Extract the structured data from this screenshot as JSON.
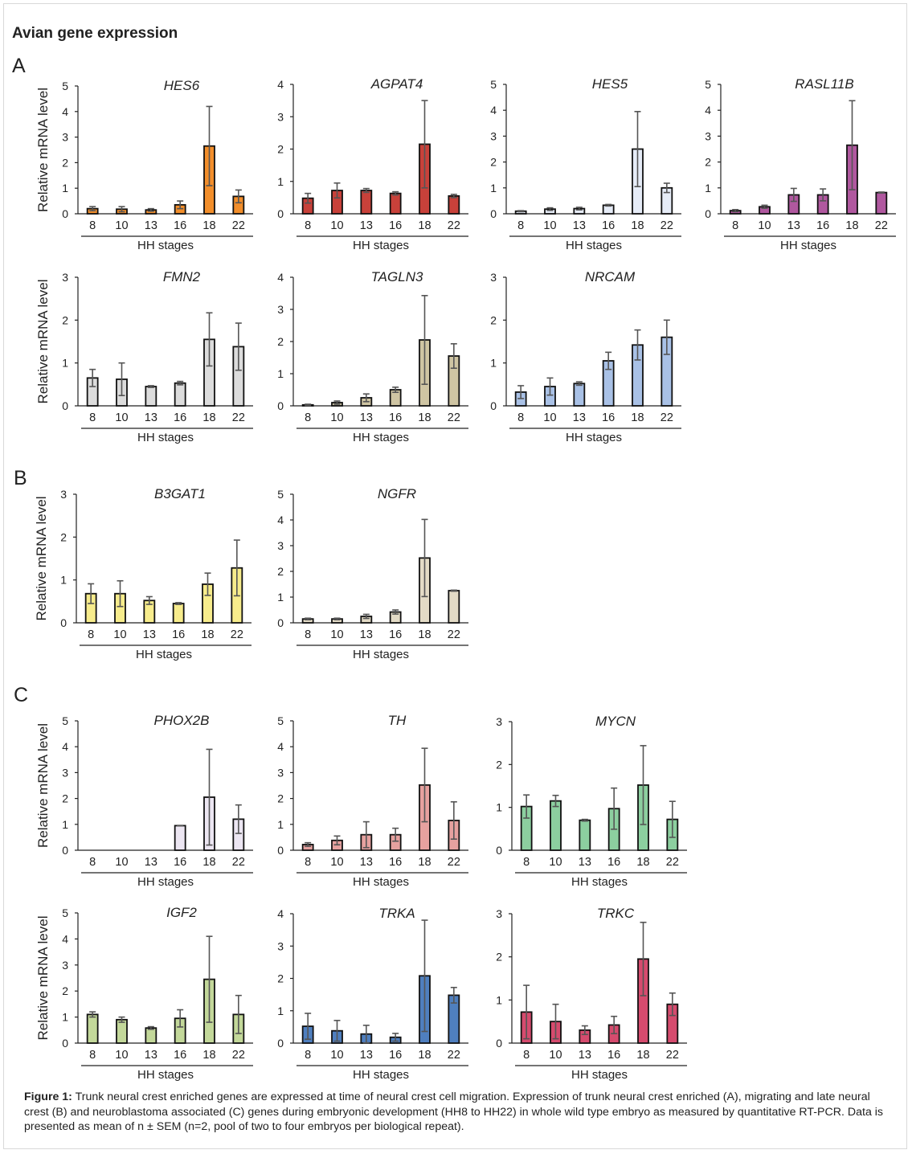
{
  "figure": {
    "title": "Avian gene expression",
    "panels": [
      "A",
      "B",
      "C"
    ],
    "caption_label": "Figure 1:",
    "caption_text": "Trunk neural crest enriched genes are expressed at time of neural crest cell migration. Expression of trunk neural crest enriched (A), migrating and late neural crest (B) and neuroblastoma associated (C) genes during embryonic development (HH8 to HH22) in whole wild type embryo as measured by quantitative RT-PCR. Data is presented as mean of n ± SEM (n=2, pool of two to four embryos per biological repeat)."
  },
  "chart_data": [
    {
      "type": "bar",
      "panel": "A",
      "title": "HES6",
      "categories": [
        "8",
        "10",
        "13",
        "16",
        "18",
        "22"
      ],
      "values": [
        0.2,
        0.18,
        0.15,
        0.35,
        2.65,
        0.68
      ],
      "error": [
        0.08,
        0.1,
        0.05,
        0.15,
        1.55,
        0.25
      ],
      "ylim": [
        0,
        5
      ],
      "yticks": [
        0,
        1,
        2,
        3,
        4,
        5
      ],
      "xlabel": "HH stages",
      "ylabel": "Relative mRNA level",
      "color": "#f28e2b"
    },
    {
      "type": "bar",
      "panel": "A",
      "title": "AGPAT4",
      "categories": [
        "8",
        "10",
        "13",
        "16",
        "18",
        "22"
      ],
      "values": [
        0.48,
        0.72,
        0.72,
        0.63,
        2.15,
        0.55
      ],
      "error": [
        0.15,
        0.23,
        0.06,
        0.05,
        1.35,
        0.05
      ],
      "ylim": [
        0,
        4
      ],
      "yticks": [
        0,
        1,
        2,
        3,
        4
      ],
      "xlabel": "HH stages",
      "ylabel": "",
      "color": "#c8413a"
    },
    {
      "type": "bar",
      "panel": "A",
      "title": "HES5",
      "categories": [
        "8",
        "10",
        "13",
        "16",
        "18",
        "22"
      ],
      "values": [
        0.1,
        0.18,
        0.2,
        0.33,
        2.5,
        1.0
      ],
      "error": [
        0.02,
        0.05,
        0.05,
        0.03,
        1.45,
        0.18
      ],
      "ylim": [
        0,
        5
      ],
      "yticks": [
        0,
        1,
        2,
        3,
        4,
        5
      ],
      "xlabel": "HH stages",
      "ylabel": "",
      "color": "#e6ecf7"
    },
    {
      "type": "bar",
      "panel": "A",
      "title": "RASL11B",
      "categories": [
        "8",
        "10",
        "13",
        "16",
        "18",
        "22"
      ],
      "values": [
        0.12,
        0.27,
        0.73,
        0.73,
        2.65,
        0.82
      ],
      "error": [
        0.04,
        0.06,
        0.25,
        0.23,
        1.72,
        0.02
      ],
      "ylim": [
        0,
        5
      ],
      "yticks": [
        0,
        1,
        2,
        3,
        4,
        5
      ],
      "xlabel": "HH stages",
      "ylabel": "",
      "color": "#b0589f"
    },
    {
      "type": "bar",
      "panel": "A",
      "title": "FMN2",
      "categories": [
        "8",
        "10",
        "13",
        "16",
        "18",
        "22"
      ],
      "values": [
        0.65,
        0.62,
        0.45,
        0.53,
        1.55,
        1.38
      ],
      "error": [
        0.2,
        0.38,
        0.02,
        0.04,
        0.62,
        0.55
      ],
      "ylim": [
        0,
        3
      ],
      "yticks": [
        0,
        1,
        2,
        3
      ],
      "xlabel": "HH stages",
      "ylabel": "Relative mRNA level",
      "color": "#dcdcdc"
    },
    {
      "type": "bar",
      "panel": "A",
      "title": "TAGLN3",
      "categories": [
        "8",
        "10",
        "13",
        "16",
        "18",
        "22"
      ],
      "values": [
        0.03,
        0.1,
        0.25,
        0.5,
        2.05,
        1.55
      ],
      "error": [
        0.02,
        0.05,
        0.12,
        0.08,
        1.38,
        0.38
      ],
      "ylim": [
        0,
        4
      ],
      "yticks": [
        0,
        1,
        2,
        3,
        4
      ],
      "xlabel": "HH stages",
      "ylabel": "",
      "color": "#cfc5a3"
    },
    {
      "type": "bar",
      "panel": "A",
      "title": "NRCAM",
      "categories": [
        "8",
        "10",
        "13",
        "16",
        "18",
        "22"
      ],
      "values": [
        0.32,
        0.45,
        0.52,
        1.05,
        1.42,
        1.6
      ],
      "error": [
        0.15,
        0.2,
        0.04,
        0.2,
        0.35,
        0.4
      ],
      "ylim": [
        0,
        3
      ],
      "yticks": [
        0,
        1,
        2,
        3
      ],
      "xlabel": "HH stages",
      "ylabel": "",
      "color": "#a9c1e6"
    },
    {
      "type": "bar",
      "panel": "B",
      "title": "B3GAT1",
      "categories": [
        "8",
        "10",
        "13",
        "16",
        "18",
        "22"
      ],
      "values": [
        0.68,
        0.68,
        0.52,
        0.45,
        0.9,
        1.28
      ],
      "error": [
        0.23,
        0.3,
        0.09,
        0.02,
        0.26,
        0.65
      ],
      "ylim": [
        0,
        3
      ],
      "yticks": [
        0,
        1,
        2,
        3
      ],
      "xlabel": "HH stages",
      "ylabel": "Relative mRNA level",
      "color": "#f7ec8c"
    },
    {
      "type": "bar",
      "panel": "B",
      "title": "NGFR",
      "categories": [
        "8",
        "10",
        "13",
        "16",
        "18",
        "22"
      ],
      "values": [
        0.15,
        0.15,
        0.25,
        0.42,
        2.52,
        1.25
      ],
      "error": [
        0.03,
        0.03,
        0.08,
        0.08,
        1.5,
        0.02
      ],
      "ylim": [
        0,
        5
      ],
      "yticks": [
        0,
        1,
        2,
        3,
        4,
        5
      ],
      "xlabel": "HH stages",
      "ylabel": "",
      "color": "#e3dbc6"
    },
    {
      "type": "bar",
      "panel": "C",
      "title": "PHOX2B",
      "categories": [
        "8",
        "10",
        "13",
        "16",
        "18",
        "22"
      ],
      "values": [
        0,
        0,
        0,
        0.95,
        2.05,
        1.2
      ],
      "error": [
        0,
        0,
        0,
        0.01,
        1.85,
        0.55
      ],
      "ylim": [
        0,
        5
      ],
      "yticks": [
        0,
        1,
        2,
        3,
        4,
        5
      ],
      "xlabel": "HH stages",
      "ylabel": "Relative mRNA level",
      "color": "#ece6f2"
    },
    {
      "type": "bar",
      "panel": "C",
      "title": "TH",
      "categories": [
        "8",
        "10",
        "13",
        "16",
        "18",
        "22"
      ],
      "values": [
        0.22,
        0.38,
        0.6,
        0.6,
        2.52,
        1.15
      ],
      "error": [
        0.07,
        0.17,
        0.5,
        0.25,
        1.42,
        0.72
      ],
      "ylim": [
        0,
        5
      ],
      "yticks": [
        0,
        1,
        2,
        3,
        4,
        5
      ],
      "xlabel": "HH stages",
      "ylabel": "",
      "color": "#e6a19f"
    },
    {
      "type": "bar",
      "panel": "C",
      "title": "MYCN",
      "categories": [
        "8",
        "10",
        "13",
        "16",
        "18",
        "22"
      ],
      "values": [
        1.02,
        1.15,
        0.7,
        0.97,
        1.52,
        0.72
      ],
      "error": [
        0.27,
        0.13,
        0.02,
        0.48,
        0.92,
        0.42
      ],
      "ylim": [
        0,
        3
      ],
      "yticks": [
        0,
        1,
        2,
        3
      ],
      "xlabel": "HH stages",
      "ylabel": "",
      "color": "#8ccf9f"
    },
    {
      "type": "bar",
      "panel": "C",
      "title": "IGF2",
      "categories": [
        "8",
        "10",
        "13",
        "16",
        "18",
        "22"
      ],
      "values": [
        1.1,
        0.9,
        0.58,
        0.95,
        2.45,
        1.1
      ],
      "error": [
        0.1,
        0.1,
        0.05,
        0.33,
        1.65,
        0.73
      ],
      "ylim": [
        0,
        5
      ],
      "yticks": [
        0,
        1,
        2,
        3,
        4,
        5
      ],
      "xlabel": "HH stages",
      "ylabel": "Relative mRNA level",
      "color": "#c3d89a"
    },
    {
      "type": "bar",
      "panel": "C",
      "title": "TRKA",
      "categories": [
        "8",
        "10",
        "13",
        "16",
        "18",
        "22"
      ],
      "values": [
        0.52,
        0.38,
        0.28,
        0.18,
        2.08,
        1.48
      ],
      "error": [
        0.4,
        0.32,
        0.27,
        0.12,
        1.72,
        0.24
      ],
      "ylim": [
        0,
        4
      ],
      "yticks": [
        0,
        1,
        2,
        3,
        4
      ],
      "xlabel": "HH stages",
      "ylabel": "",
      "color": "#4f7fbf"
    },
    {
      "type": "bar",
      "panel": "C",
      "title": "TRKC",
      "categories": [
        "8",
        "10",
        "13",
        "16",
        "18",
        "22"
      ],
      "values": [
        0.72,
        0.5,
        0.3,
        0.42,
        1.95,
        0.9
      ],
      "error": [
        0.62,
        0.4,
        0.1,
        0.2,
        0.85,
        0.26
      ],
      "ylim": [
        0,
        3
      ],
      "yticks": [
        0,
        1,
        2,
        3
      ],
      "xlabel": "HH stages",
      "ylabel": "",
      "color": "#d64b6e"
    }
  ]
}
